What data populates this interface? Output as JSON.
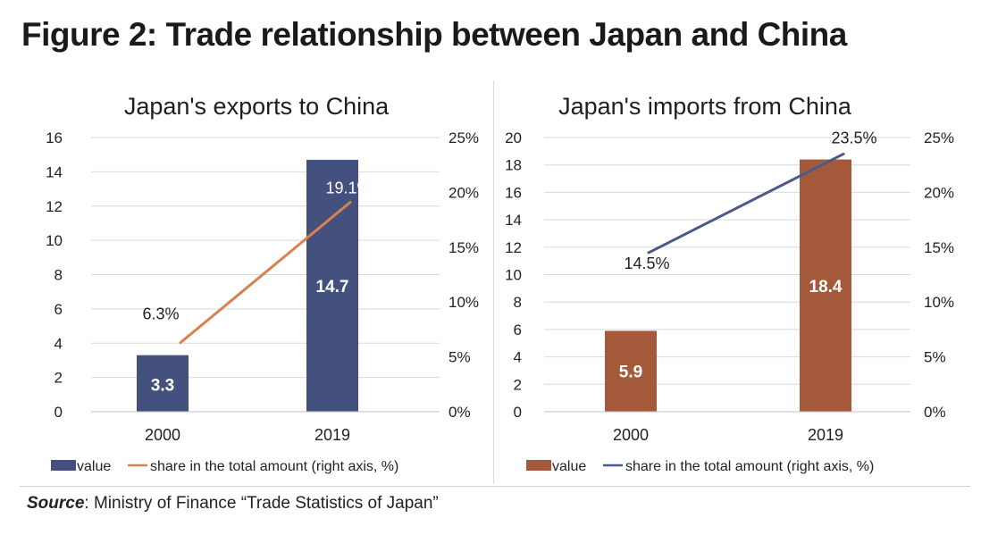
{
  "figure_title": "Figure 2: Trade relationship between Japan and China",
  "source": {
    "label": "Source",
    "text": ": Ministry of Finance “Trade Statistics of Japan”"
  },
  "chart_data": [
    {
      "type": "bar",
      "title": "Japan's exports to China",
      "categories": [
        "2000",
        "2019"
      ],
      "left_axis": {
        "min": 0,
        "max": 16,
        "step": 2,
        "ticks": [
          "0",
          "2",
          "4",
          "6",
          "8",
          "10",
          "12",
          "14",
          "16"
        ]
      },
      "right_axis": {
        "min": 0,
        "max": 25,
        "step": 5,
        "ticks": [
          "0%",
          "5%",
          "10%",
          "15%",
          "20%",
          "25%"
        ]
      },
      "series": [
        {
          "name": "value",
          "kind": "bar",
          "axis": "left",
          "color": "#44507e",
          "values": [
            3.3,
            14.7
          ],
          "labels": [
            "3.3",
            "14.7"
          ]
        },
        {
          "name": "share in the total amount (right axis, %)",
          "kind": "line",
          "axis": "right",
          "color": "#d8824f",
          "values": [
            6.3,
            19.1
          ],
          "labels": [
            "6.3%",
            "19.1%"
          ]
        }
      ],
      "grid": true,
      "legend": "bottom"
    },
    {
      "type": "bar",
      "title": "Japan's imports from China",
      "categories": [
        "2000",
        "2019"
      ],
      "left_axis": {
        "min": 0,
        "max": 20,
        "step": 2,
        "ticks": [
          "0",
          "2",
          "4",
          "6",
          "8",
          "10",
          "12",
          "14",
          "16",
          "18",
          "20"
        ]
      },
      "right_axis": {
        "min": 0,
        "max": 25,
        "step": 5,
        "ticks": [
          "0%",
          "5%",
          "10%",
          "15%",
          "20%",
          "25%"
        ]
      },
      "series": [
        {
          "name": "value",
          "kind": "bar",
          "axis": "left",
          "color": "#a45a3a",
          "values": [
            5.9,
            18.4
          ],
          "labels": [
            "5.9",
            "18.4"
          ]
        },
        {
          "name": "share in the total amount (right axis, %)",
          "kind": "line",
          "axis": "right",
          "color": "#4a5a8c",
          "values": [
            14.5,
            23.5
          ],
          "labels": [
            "14.5%",
            "23.5%"
          ]
        }
      ],
      "grid": true,
      "legend": "bottom"
    }
  ]
}
